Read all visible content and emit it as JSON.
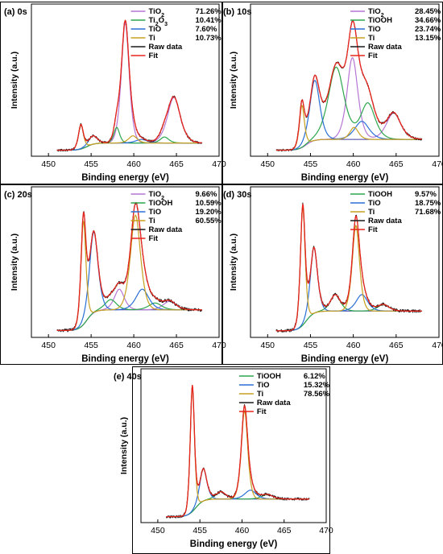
{
  "chart_data": [
    {
      "type": "line",
      "title": "(a) 0s",
      "xlabel": "Binding energy (eV)",
      "ylabel": "Intensity (a.u.)",
      "xlim": [
        448,
        470
      ],
      "xticks": [
        "450",
        "455",
        "460",
        "465",
        "470"
      ],
      "x_reversed": false,
      "legend_position": "top-right",
      "background": 0.05,
      "components": [
        {
          "name": "TiO",
          "sub": "2",
          "pct": "71.26%",
          "color": "#b676d4",
          "peaks": [
            [
              459.0,
              1.0,
              0.55
            ],
            [
              464.7,
              0.38,
              0.9
            ]
          ],
          "step": 0.0
        },
        {
          "name": "Ti",
          "sub": "2",
          "name2": "O",
          "sub2": "3",
          "pct": "10.41%",
          "color": "#2ca64c",
          "peaks": [
            [
              458.0,
              0.13,
              0.4
            ],
            [
              463.6,
              0.05,
              0.6
            ]
          ],
          "step": 0.0
        },
        {
          "name": "TiO",
          "pct": "7.60%",
          "color": "#2a6fd6",
          "peaks": [
            [
              455.2,
              0.07,
              0.6
            ],
            [
              460.9,
              0.03,
              0.8
            ]
          ],
          "step": 0.0
        },
        {
          "name": "Ti",
          "pct": "10.73%",
          "color": "#c8a020",
          "peaks": [
            [
              453.8,
              0.2,
              0.35
            ],
            [
              459.9,
              0.06,
              0.6
            ]
          ],
          "step": 0.1
        }
      ],
      "raw_label": "Raw data",
      "fit_label": "Fit"
    },
    {
      "type": "line",
      "title": "(b) 10s",
      "xlabel": "Binding energy (eV)",
      "ylabel": "Intensity (a.u.)",
      "xlim": [
        448,
        470
      ],
      "xticks": [
        "450",
        "455",
        "460",
        "465",
        "470"
      ],
      "x_reversed": false,
      "legend_position": "top-right",
      "background": 0.05,
      "components": [
        {
          "name": "TiO",
          "sub": "2",
          "pct": "28.45%",
          "color": "#b676d4",
          "peaks": [
            [
              459.9,
              0.68,
              0.75
            ],
            [
              464.7,
              0.22,
              1.0
            ]
          ],
          "step": 0.0
        },
        {
          "name": "TiOOH",
          "pct": "34.66%",
          "color": "#2ca64c",
          "peaks": [
            [
              458.0,
              0.6,
              1.1
            ],
            [
              461.7,
              0.3,
              1.0
            ]
          ],
          "step": 0.0
        },
        {
          "name": "TiO",
          "pct": "23.74%",
          "color": "#2a6fd6",
          "peaks": [
            [
              455.5,
              0.5,
              0.7
            ],
            [
              461.0,
              0.15,
              1.0
            ]
          ],
          "step": 0.0
        },
        {
          "name": "Ti",
          "pct": "13.15%",
          "color": "#c8a020",
          "peaks": [
            [
              454.0,
              0.35,
              0.35
            ],
            [
              460.1,
              0.1,
              0.6
            ]
          ],
          "step": 0.15
        }
      ],
      "raw_label": "Raw data",
      "fit_label": "Fit"
    },
    {
      "type": "line",
      "title": "(c) 20s",
      "xlabel": "Binding energy (eV)",
      "ylabel": "Intensity (a.u.)",
      "xlim": [
        448,
        470
      ],
      "xticks": [
        "450",
        "455",
        "460",
        "465",
        "470"
      ],
      "x_reversed": false,
      "legend_position": "top-right",
      "background": 0.04,
      "components": [
        {
          "name": "TiO",
          "sub": "2",
          "pct": "9.66%",
          "color": "#b676d4",
          "peaks": [
            [
              458.3,
              0.12,
              0.7
            ],
            [
              464.2,
              0.05,
              0.9
            ]
          ],
          "step": 0.0
        },
        {
          "name": "TiOOH",
          "pct": "10.59%",
          "color": "#2ca64c",
          "peaks": [
            [
              457.3,
              0.06,
              0.8
            ],
            [
              462.5,
              0.04,
              0.9
            ]
          ],
          "step": 0.0
        },
        {
          "name": "TiO",
          "pct": "19.20%",
          "color": "#2a6fd6",
          "peaks": [
            [
              455.3,
              0.47,
              0.6
            ],
            [
              461.0,
              0.12,
              0.9
            ]
          ],
          "step": 0.0
        },
        {
          "name": "Ti",
          "pct": "60.55%",
          "color": "#c8a020",
          "peaks": [
            [
              454.1,
              0.6,
              0.35
            ],
            [
              460.2,
              0.55,
              0.7
            ]
          ],
          "step": 0.2
        }
      ],
      "raw_label": "Raw data",
      "fit_label": "Fit"
    },
    {
      "type": "line",
      "title": "(d) 30s",
      "xlabel": "Binding energy (eV)",
      "ylabel": "Intensity (a.u.)",
      "xlim": [
        448,
        470
      ],
      "xticks": [
        "450",
        "455",
        "460",
        "465",
        "470"
      ],
      "x_reversed": false,
      "legend_position": "top-right",
      "background": 0.04,
      "components": [
        {
          "name": "TiOOH",
          "pct": "9.57%",
          "color": "#2ca64c",
          "peaks": [
            [
              457.9,
              0.1,
              0.7
            ],
            [
              463.5,
              0.04,
              0.8
            ]
          ],
          "step": 0.0
        },
        {
          "name": "TiO",
          "pct": "18.75%",
          "color": "#2a6fd6",
          "peaks": [
            [
              455.4,
              0.4,
              0.5
            ],
            [
              461.0,
              0.1,
              0.8
            ]
          ],
          "step": 0.0
        },
        {
          "name": "Ti",
          "pct": "71.68%",
          "color": "#c8a020",
          "peaks": [
            [
              454.1,
              0.72,
              0.33
            ],
            [
              460.3,
              0.52,
              0.5
            ]
          ],
          "step": 0.2
        }
      ],
      "raw_label": "Raw data",
      "fit_label": "Fit"
    },
    {
      "type": "line",
      "title": "(e) 40s",
      "xlabel": "Binding energy (eV)",
      "ylabel": "Intensity (a.u.)",
      "xlim": [
        448,
        470
      ],
      "xticks": [
        "450",
        "455",
        "460",
        "465",
        "470"
      ],
      "x_reversed": false,
      "legend_position": "top-right",
      "background": 0.04,
      "components": [
        {
          "name": "TiOOH",
          "pct": "6.12%",
          "color": "#2ca64c",
          "peaks": [
            [
              457.5,
              0.05,
              0.7
            ],
            [
              463.0,
              0.03,
              0.8
            ]
          ],
          "step": 0.0
        },
        {
          "name": "TiO",
          "pct": "15.32%",
          "color": "#2a6fd6",
          "peaks": [
            [
              455.4,
              0.22,
              0.5
            ],
            [
              461.0,
              0.06,
              0.8
            ]
          ],
          "step": 0.0
        },
        {
          "name": "Ti",
          "pct": "78.56%",
          "color": "#c8a020",
          "peaks": [
            [
              454.1,
              0.85,
              0.3
            ],
            [
              460.3,
              0.6,
              0.45
            ]
          ],
          "step": 0.2
        }
      ],
      "raw_label": "Raw data",
      "fit_label": "Fit"
    }
  ],
  "colors": {
    "raw": "#1a1a1a",
    "fit": "#e8241c",
    "background_line": "#3c3ca0"
  }
}
